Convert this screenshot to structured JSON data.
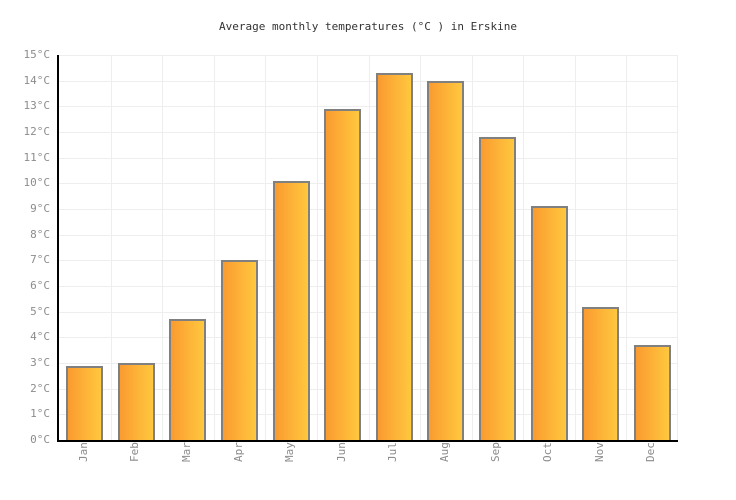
{
  "page": {
    "background": "#FFFFFF"
  },
  "chart_data": {
    "type": "bar",
    "title": "Average monthly temperatures (°C ) in Erskine",
    "categories": [
      "Jan",
      "Feb",
      "Mar",
      "Apr",
      "May",
      "Jun",
      "Jul",
      "Aug",
      "Sep",
      "Oct",
      "Nov",
      "Dec"
    ],
    "values": [
      2.9,
      3.0,
      4.7,
      7.0,
      10.1,
      12.9,
      14.3,
      14.0,
      11.8,
      9.1,
      5.2,
      3.7
    ],
    "unit": "°C",
    "xlabel": "",
    "ylabel": "",
    "ylim": [
      0,
      15
    ],
    "y_tick_step": 1,
    "y_tick_labels": [
      "0°C",
      "1°C",
      "2°C",
      "3°C",
      "4°C",
      "5°C",
      "6°C",
      "7°C",
      "8°C",
      "9°C",
      "10°C",
      "11°C",
      "12°C",
      "13°C",
      "14°C",
      "15°C"
    ],
    "grid": true,
    "legend": false,
    "x_label_rotation_deg": -90,
    "colors": {
      "background": "#FFFFFF",
      "title": "#333333",
      "tick_label": "#8C8C8C",
      "gridline": "#EEEEEE",
      "axis": "#000000",
      "bar_border": "#808080",
      "bar_gradient_left": "#FA9B30",
      "bar_gradient_right": "#FFC83E"
    }
  }
}
